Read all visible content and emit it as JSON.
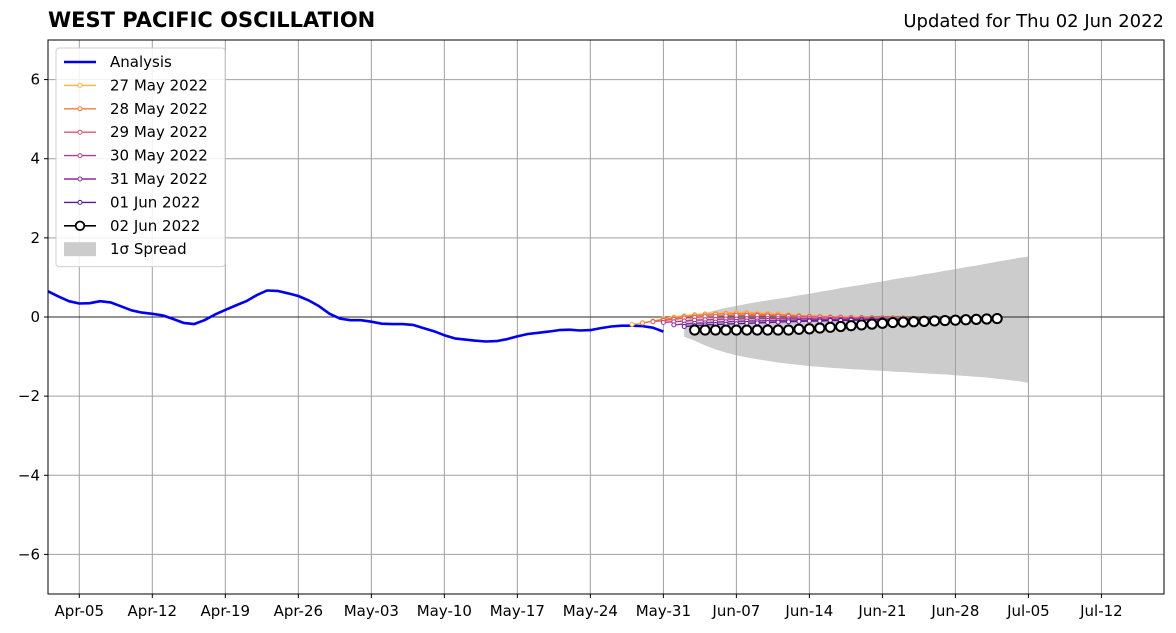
{
  "header": {
    "title": "WEST PACIFIC OSCILLATION",
    "updated": "Updated for Thu 02 Jun 2022"
  },
  "chart_data": {
    "type": "line",
    "title": "WEST PACIFIC OSCILLATION",
    "xlabel": "",
    "ylabel": "",
    "xlim": [
      "2022-04-02",
      "2022-07-18"
    ],
    "ylim": [
      -7,
      7
    ],
    "x_ticks": [
      "Apr-05",
      "Apr-12",
      "Apr-19",
      "Apr-26",
      "May-03",
      "May-10",
      "May-17",
      "May-24",
      "May-31",
      "Jun-07",
      "Jun-14",
      "Jun-21",
      "Jun-28",
      "Jul-05",
      "Jul-12"
    ],
    "y_ticks": [
      -6,
      -4,
      -2,
      0,
      2,
      4,
      6
    ],
    "grid": true,
    "legend_position": "top-left",
    "zero_line": 0,
    "colors": {
      "analysis": "#0000ee",
      "spread": "#cccccc",
      "grid": "#a0a0a0"
    },
    "series": [
      {
        "name": "Analysis",
        "color": "#0000ee",
        "start": "2022-04-02",
        "values": [
          0.65,
          0.52,
          0.4,
          0.34,
          0.35,
          0.4,
          0.37,
          0.27,
          0.17,
          0.11,
          0.08,
          0.04,
          -0.05,
          -0.15,
          -0.18,
          -0.08,
          0.06,
          0.18,
          0.29,
          0.4,
          0.55,
          0.67,
          0.66,
          0.6,
          0.53,
          0.42,
          0.27,
          0.08,
          -0.04,
          -0.08,
          -0.08,
          -0.12,
          -0.17,
          -0.18,
          -0.18,
          -0.2,
          -0.28,
          -0.36,
          -0.46,
          -0.54,
          -0.57,
          -0.6,
          -0.62,
          -0.61,
          -0.56,
          -0.49,
          -0.43,
          -0.4,
          -0.37,
          -0.33,
          -0.32,
          -0.34,
          -0.33,
          -0.28,
          -0.24,
          -0.22,
          -0.22,
          -0.23,
          -0.27,
          -0.37
        ]
      },
      {
        "name": "27 May 2022",
        "color": "#f9b23c",
        "start": "2022-05-28",
        "values": [
          -0.19,
          -0.15,
          -0.1,
          -0.04,
          0.0,
          0.03,
          0.06,
          0.08,
          0.09,
          0.1,
          0.11,
          0.11,
          0.1,
          0.09,
          0.08,
          0.06,
          0.04,
          0.03,
          0.02,
          0.01,
          0.0,
          0.0,
          -0.01,
          -0.01,
          -0.02,
          -0.02,
          -0.02,
          -0.03
        ]
      },
      {
        "name": "28 May 2022",
        "color": "#ee7d3e",
        "start": "2022-05-29",
        "values": [
          -0.15,
          -0.11,
          -0.07,
          -0.03,
          0.01,
          0.03,
          0.05,
          0.07,
          0.08,
          0.08,
          0.08,
          0.07,
          0.06,
          0.05,
          0.04,
          0.03,
          0.02,
          0.01,
          0.0,
          0.0,
          -0.01,
          -0.01,
          -0.02,
          -0.02,
          -0.02,
          -0.03,
          -0.03,
          -0.03
        ]
      },
      {
        "name": "29 May 2022",
        "color": "#db5a6c",
        "start": "2022-05-30",
        "values": [
          -0.12,
          -0.09,
          -0.06,
          -0.03,
          -0.01,
          0.01,
          0.02,
          0.03,
          0.04,
          0.04,
          0.04,
          0.03,
          0.02,
          0.02,
          0.01,
          0.0,
          0.0,
          -0.01,
          -0.01,
          -0.02,
          -0.02,
          -0.02,
          -0.03,
          -0.03,
          -0.03,
          -0.04,
          -0.04,
          -0.04
        ]
      },
      {
        "name": "30 May 2022",
        "color": "#b53d8b",
        "start": "2022-05-31",
        "values": [
          -0.14,
          -0.12,
          -0.1,
          -0.08,
          -0.07,
          -0.06,
          -0.05,
          -0.05,
          -0.04,
          -0.04,
          -0.04,
          -0.04,
          -0.04,
          -0.04,
          -0.04,
          -0.05,
          -0.05,
          -0.05,
          -0.05,
          -0.05,
          -0.05,
          -0.05,
          -0.05,
          -0.05,
          -0.05,
          -0.05,
          -0.05,
          -0.05
        ]
      },
      {
        "name": "31 May 2022",
        "color": "#8a2aa3",
        "start": "2022-06-01",
        "values": [
          -0.2,
          -0.18,
          -0.16,
          -0.15,
          -0.13,
          -0.12,
          -0.11,
          -0.1,
          -0.1,
          -0.09,
          -0.09,
          -0.08,
          -0.08,
          -0.08,
          -0.07,
          -0.07,
          -0.07,
          -0.06,
          -0.06,
          -0.06,
          -0.06,
          -0.06,
          -0.05,
          -0.05,
          -0.05,
          -0.05,
          -0.05,
          -0.05
        ]
      },
      {
        "name": "01 Jun 2022",
        "color": "#5b1895",
        "start": "2022-06-02",
        "values": [
          -0.24,
          -0.22,
          -0.2,
          -0.19,
          -0.18,
          -0.17,
          -0.16,
          -0.15,
          -0.14,
          -0.13,
          -0.12,
          -0.11,
          -0.1,
          -0.1,
          -0.09,
          -0.09,
          -0.08,
          -0.08,
          -0.07,
          -0.07,
          -0.07,
          -0.06,
          -0.06,
          -0.06,
          -0.06,
          -0.05,
          -0.05,
          -0.05
        ]
      },
      {
        "name": "02 Jun 2022",
        "color": "#000000",
        "start": "2022-06-03",
        "values": [
          -0.33,
          -0.33,
          -0.33,
          -0.33,
          -0.33,
          -0.33,
          -0.33,
          -0.33,
          -0.33,
          -0.33,
          -0.31,
          -0.3,
          -0.28,
          -0.26,
          -0.24,
          -0.22,
          -0.2,
          -0.18,
          -0.16,
          -0.14,
          -0.13,
          -0.12,
          -0.11,
          -0.1,
          -0.09,
          -0.08,
          -0.07,
          -0.06,
          -0.05,
          -0.04
        ]
      }
    ],
    "spread": {
      "name": "1σ Spread",
      "color": "#cccccc",
      "start": "2022-06-02",
      "upper": [
        -0.1,
        0.02,
        0.1,
        0.17,
        0.23,
        0.28,
        0.33,
        0.38,
        0.42,
        0.46,
        0.5,
        0.55,
        0.59,
        0.64,
        0.68,
        0.73,
        0.77,
        0.81,
        0.86,
        0.9,
        0.95,
        0.99,
        1.03,
        1.08,
        1.12,
        1.17,
        1.21,
        1.26,
        1.3,
        1.35,
        1.4,
        1.44,
        1.49,
        1.53
      ],
      "lower": [
        -0.5,
        -0.6,
        -0.72,
        -0.82,
        -0.9,
        -0.97,
        -1.02,
        -1.07,
        -1.11,
        -1.15,
        -1.18,
        -1.21,
        -1.24,
        -1.26,
        -1.28,
        -1.3,
        -1.32,
        -1.33,
        -1.35,
        -1.36,
        -1.38,
        -1.39,
        -1.41,
        -1.42,
        -1.44,
        -1.45,
        -1.47,
        -1.49,
        -1.51,
        -1.53,
        -1.56,
        -1.59,
        -1.62,
        -1.66
      ]
    }
  }
}
